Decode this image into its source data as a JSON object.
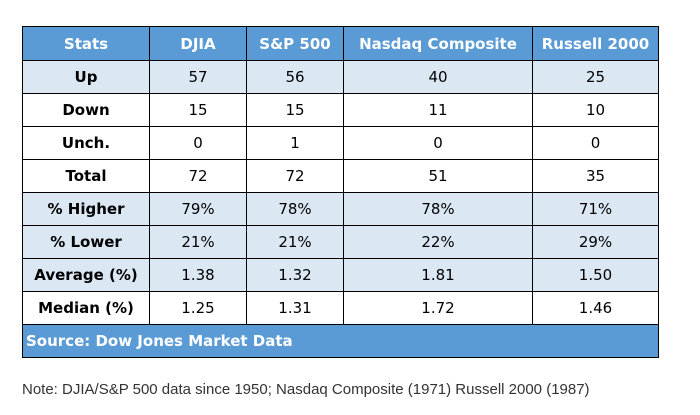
{
  "table": {
    "headers": [
      "Stats",
      "DJIA",
      "S&P 500",
      "Nasdaq Composite",
      "Russell 2000"
    ],
    "rows": [
      [
        "Up",
        "57",
        "56",
        "40",
        "25"
      ],
      [
        "Down",
        "15",
        "15",
        "11",
        "10"
      ],
      [
        "Unch.",
        "0",
        "1",
        "0",
        "0"
      ],
      [
        "Total",
        "72",
        "72",
        "51",
        "35"
      ],
      [
        "% Higher",
        "79%",
        "78%",
        "78%",
        "71%"
      ],
      [
        "% Lower",
        "21%",
        "21%",
        "22%",
        "29%"
      ],
      [
        "Average (%)",
        "1.38",
        "1.32",
        "1.81",
        "1.50"
      ],
      [
        "Median (%)",
        "1.25",
        "1.31",
        "1.72",
        "1.46"
      ]
    ],
    "source": "Source: Dow Jones Market Data"
  },
  "note": "Note: DJIA/S&P 500 data since 1950; Nasdaq Composite (1971) Russell 2000 (1987)",
  "colors": {
    "header_bg": "#5b9bd5",
    "shaded_row_bg": "#dbe7f3",
    "header_text": "#ffffff"
  }
}
